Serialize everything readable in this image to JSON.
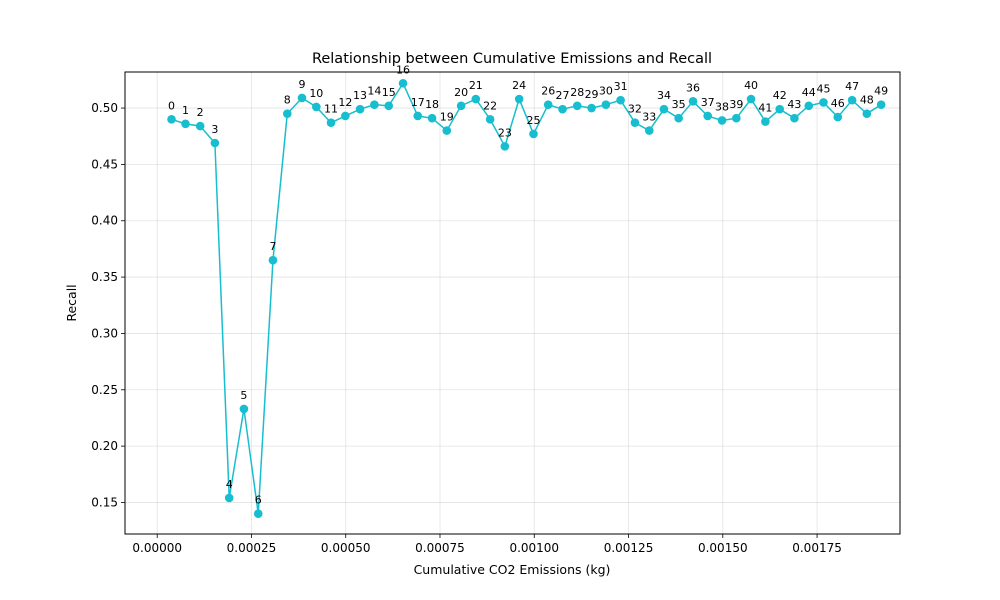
{
  "chart_data": {
    "type": "line",
    "title": "Relationship between Cumulative Emissions and Recall",
    "xlabel": "Cumulative CO2 Emissions (kg)",
    "ylabel": "Recall",
    "xlim": [
      -8.54e-05,
      0.00197
    ],
    "ylim": [
      0.122,
      0.532
    ],
    "xticks": [
      0.0,
      0.00025,
      0.0005,
      0.00075,
      0.001,
      0.00125,
      0.0015,
      0.00175
    ],
    "xtick_labels": [
      "0.00000",
      "0.00025",
      "0.00050",
      "0.00075",
      "0.00100",
      "0.00125",
      "0.00150",
      "0.00175"
    ],
    "yticks": [
      0.15,
      0.2,
      0.25,
      0.3,
      0.35,
      0.4,
      0.45,
      0.5
    ],
    "ytick_labels": [
      "0.15",
      "0.20",
      "0.25",
      "0.30",
      "0.35",
      "0.40",
      "0.45",
      "0.50"
    ],
    "grid": true,
    "color": "#17becf",
    "point_labels": [
      "0",
      "1",
      "2",
      "3",
      "4",
      "5",
      "6",
      "7",
      "8",
      "9",
      "10",
      "11",
      "12",
      "13",
      "14",
      "15",
      "16",
      "17",
      "18",
      "19",
      "20",
      "21",
      "22",
      "23",
      "24",
      "25",
      "26",
      "27",
      "28",
      "29",
      "30",
      "31",
      "32",
      "33",
      "34",
      "35",
      "36",
      "37",
      "38",
      "39",
      "40",
      "41",
      "42",
      "43",
      "44",
      "45",
      "46",
      "47",
      "48",
      "49"
    ],
    "x": [
      3.8e-05,
      7.5e-05,
      0.000114,
      0.000153,
      0.000191,
      0.00023,
      0.000268,
      0.000307,
      0.000345,
      0.000384,
      0.000422,
      0.000461,
      0.000499,
      0.000538,
      0.000576,
      0.000614,
      0.000652,
      0.000691,
      0.000729,
      0.000768,
      0.000806,
      0.000845,
      0.000883,
      0.000922,
      0.00096,
      0.000998,
      0.001037,
      0.001075,
      0.001114,
      0.001152,
      0.00119,
      0.001229,
      0.001267,
      0.001305,
      0.001344,
      0.001383,
      0.001421,
      0.00146,
      0.001498,
      0.001536,
      0.001575,
      0.001613,
      0.001651,
      0.00169,
      0.001728,
      0.001767,
      0.001805,
      0.001843,
      0.001882,
      0.00192
    ],
    "y": [
      0.49,
      0.486,
      0.484,
      0.469,
      0.154,
      0.233,
      0.14,
      0.365,
      0.495,
      0.509,
      0.501,
      0.487,
      0.493,
      0.499,
      0.503,
      0.502,
      0.522,
      0.493,
      0.491,
      0.48,
      0.502,
      0.508,
      0.49,
      0.466,
      0.508,
      0.477,
      0.503,
      0.499,
      0.502,
      0.5,
      0.503,
      0.507,
      0.487,
      0.48,
      0.499,
      0.491,
      0.506,
      0.493,
      0.489,
      0.491,
      0.508,
      0.488,
      0.499,
      0.491,
      0.502,
      0.505,
      0.492,
      0.507,
      0.495,
      0.503
    ]
  }
}
